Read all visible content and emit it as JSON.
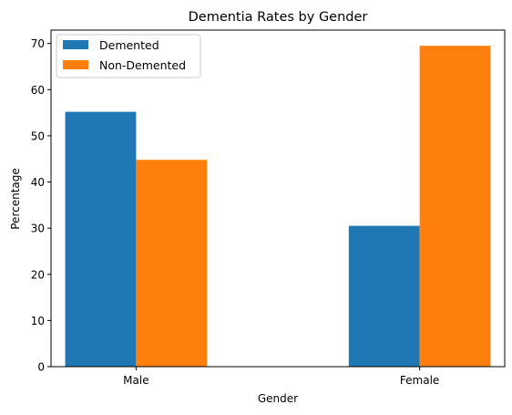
{
  "chart_data": {
    "type": "bar",
    "title": "Dementia Rates by Gender",
    "xlabel": "Gender",
    "ylabel": "Percentage",
    "categories": [
      "Male",
      "Female"
    ],
    "series": [
      {
        "name": "Demented",
        "values": [
          55.2,
          30.5
        ]
      },
      {
        "name": "Non-Demented",
        "values": [
          44.8,
          69.5
        ]
      }
    ],
    "ylim": [
      0,
      72.9
    ],
    "yticks": [
      0,
      10,
      20,
      30,
      40,
      50,
      60,
      70
    ],
    "grid": false,
    "legend_position": "top-left",
    "colors": [
      "#1f77b4",
      "#ff7f0e"
    ]
  }
}
